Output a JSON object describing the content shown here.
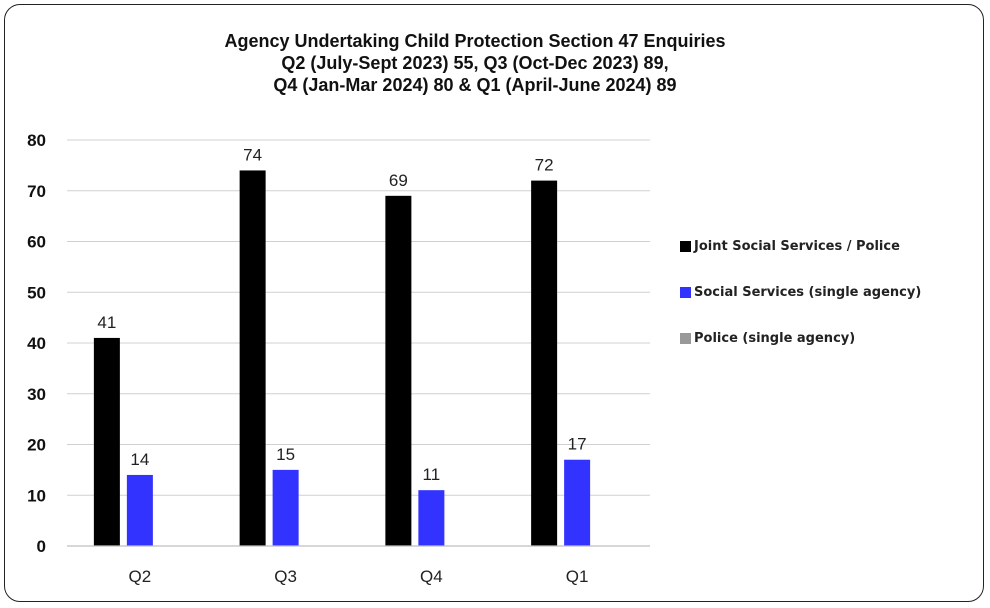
{
  "chart_data": {
    "type": "bar",
    "title_lines": [
      "Agency Undertaking Child Protection Section 47 Enquiries",
      "Q2 (July-Sept 2023) 55, Q3 (Oct-Dec 2023) 89,",
      "Q4 (Jan-Mar 2024) 80 & Q1 (April-June 2024) 89"
    ],
    "categories": [
      "Q2",
      "Q3",
      "Q4",
      "Q1"
    ],
    "series": [
      {
        "name": "Joint Social Services / Police",
        "color": "#000000",
        "values": [
          41,
          74,
          69,
          72
        ]
      },
      {
        "name": "Social Services (single agency)",
        "color": "#3333ff",
        "values": [
          14,
          15,
          11,
          17
        ]
      },
      {
        "name": "Police (single agency)",
        "color": "#999999",
        "values": [
          0,
          0,
          0,
          0
        ]
      }
    ],
    "data_labels": [
      [
        "41",
        "74",
        "69",
        "72"
      ],
      [
        "14",
        "15",
        "11",
        "17"
      ],
      [
        "",
        "",
        "",
        ""
      ]
    ],
    "yticks": [
      "0",
      "10",
      "20",
      "30",
      "40",
      "50",
      "60",
      "70",
      "80"
    ],
    "ylim": [
      0,
      80
    ],
    "grid": true,
    "legend_position": "right"
  }
}
